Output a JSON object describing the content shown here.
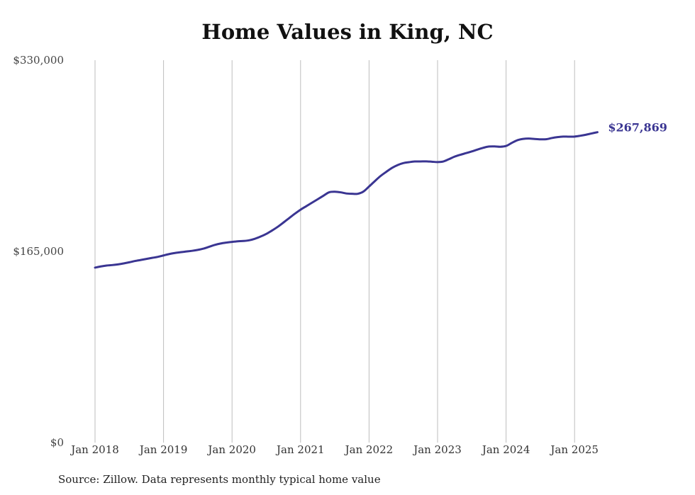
{
  "chart_data": {
    "type": "line",
    "title": "Home Values in King, NC",
    "source": "Source: Zillow. Data represents monthly typical home value",
    "xlabel": "",
    "ylabel": "",
    "ylim": [
      0,
      330000
    ],
    "y_ticks": [
      {
        "value": 0,
        "label": "$0"
      },
      {
        "value": 165000,
        "label": "$165,000"
      },
      {
        "value": 330000,
        "label": "$330,000"
      }
    ],
    "x_ticks": [
      {
        "index": 0,
        "label": "Jan 2018"
      },
      {
        "index": 12,
        "label": "Jan 2019"
      },
      {
        "index": 24,
        "label": "Jan 2020"
      },
      {
        "index": 36,
        "label": "Jan 2021"
      },
      {
        "index": 48,
        "label": "Jan 2022"
      },
      {
        "index": 60,
        "label": "Jan 2023"
      },
      {
        "index": 72,
        "label": "Jan 2024"
      },
      {
        "index": 84,
        "label": "Jan 2025"
      }
    ],
    "x_max_index": 92,
    "grid": "vertical",
    "line_color": "#3a3592",
    "end_label": "$267,869",
    "series": [
      {
        "name": "Typical home value",
        "values": [
          151000,
          152000,
          152800,
          153200,
          153800,
          154600,
          155600,
          156700,
          157600,
          158500,
          159400,
          160300,
          161500,
          162700,
          163600,
          164300,
          164900,
          165500,
          166300,
          167400,
          169000,
          170600,
          171800,
          172600,
          173200,
          173700,
          174000,
          174600,
          175900,
          177800,
          180100,
          183000,
          186200,
          189900,
          193700,
          197500,
          201000,
          204000,
          207000,
          210000,
          213000,
          216000,
          216500,
          216000,
          215000,
          214700,
          214700,
          216600,
          221000,
          225600,
          230000,
          233600,
          237000,
          239500,
          241200,
          242000,
          242600,
          242600,
          242700,
          242400,
          242100,
          242600,
          244600,
          246800,
          248400,
          249800,
          251300,
          252900,
          254400,
          255500,
          255600,
          255300,
          256000,
          258600,
          261000,
          262100,
          262400,
          262000,
          261700,
          261800,
          262800,
          263600,
          264100,
          264000,
          264100,
          264800,
          265700,
          266800,
          267869
        ]
      }
    ]
  }
}
